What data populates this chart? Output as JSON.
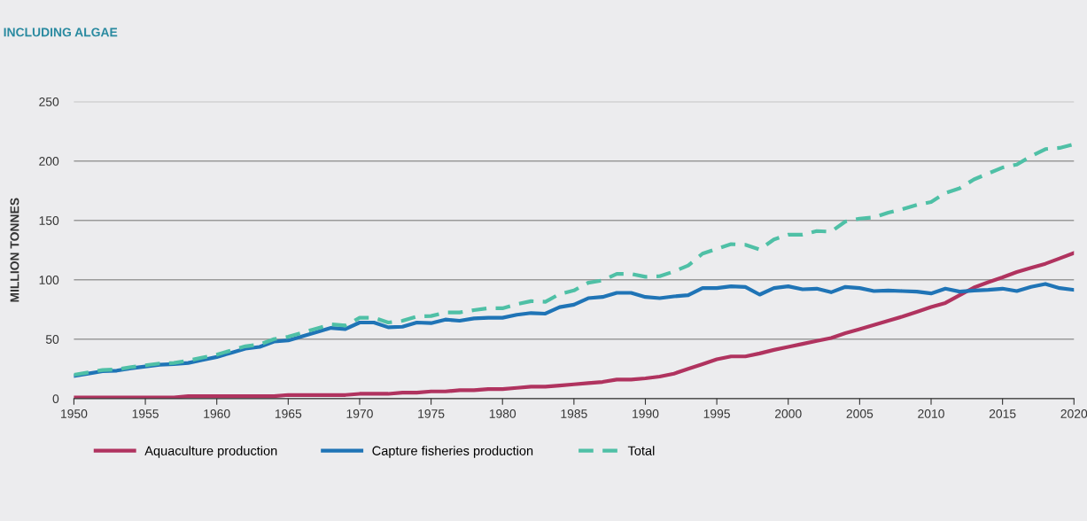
{
  "chart_data": {
    "type": "line",
    "title": "INCLUDING ALGAE",
    "ylabel": "MILLION TONNES",
    "x": [
      1950,
      1951,
      1952,
      1953,
      1954,
      1955,
      1956,
      1957,
      1958,
      1959,
      1960,
      1961,
      1962,
      1963,
      1964,
      1965,
      1966,
      1967,
      1968,
      1969,
      1970,
      1971,
      1972,
      1973,
      1974,
      1975,
      1976,
      1977,
      1978,
      1979,
      1980,
      1981,
      1982,
      1983,
      1984,
      1985,
      1986,
      1987,
      1988,
      1989,
      1990,
      1991,
      1992,
      1993,
      1994,
      1995,
      1996,
      1997,
      1998,
      1999,
      2000,
      2001,
      2002,
      2003,
      2004,
      2005,
      2006,
      2007,
      2008,
      2009,
      2010,
      2011,
      2012,
      2013,
      2014,
      2015,
      2016,
      2017,
      2018,
      2019,
      2020
    ],
    "series": [
      {
        "name": "Aquaculture production",
        "color": "#b0335f",
        "line_style": "solid",
        "values": [
          1,
          1,
          1,
          1,
          1,
          1,
          1,
          1,
          2,
          2,
          2,
          2,
          2,
          2,
          2,
          3,
          3,
          3,
          3,
          3,
          4,
          4,
          4,
          5,
          5,
          6,
          6,
          7,
          7,
          8,
          8,
          9,
          10,
          10,
          11,
          12,
          13,
          14,
          16,
          16,
          17,
          18.5,
          21,
          25,
          29,
          33,
          35.5,
          35.5,
          38,
          41,
          43.5,
          46,
          48.5,
          51,
          55,
          58.5,
          62,
          65.5,
          69,
          73,
          77,
          80.5,
          87,
          93.5,
          98,
          102,
          106.5,
          110,
          113.5,
          118,
          122.5
        ]
      },
      {
        "name": "Capture fisheries production",
        "color": "#1f74b6",
        "line_style": "solid",
        "values": [
          19,
          21,
          23,
          23.5,
          25.5,
          27,
          28.5,
          29,
          30,
          32.5,
          35,
          38.5,
          42,
          43.5,
          48,
          49,
          52.5,
          56,
          59.5,
          58.5,
          64,
          64,
          60,
          60.5,
          64,
          63.5,
          66.5,
          65.5,
          67.5,
          68,
          68,
          70.5,
          72,
          71.5,
          77,
          79,
          84.5,
          85.5,
          89,
          89,
          85.5,
          84.5,
          86,
          87,
          93,
          93,
          94.5,
          94,
          87.5,
          93,
          94.5,
          92,
          92.5,
          89.5,
          94,
          93,
          90.5,
          91,
          90.5,
          90,
          88.5,
          92.5,
          90,
          91,
          91.5,
          92.5,
          90.5,
          94,
          96.5,
          93,
          91.5
        ]
      },
      {
        "name": "Total",
        "color": "#4fc0a6",
        "line_style": "dashed",
        "values": [
          20,
          22,
          24,
          24.5,
          26.5,
          28,
          29.5,
          30,
          32,
          34.5,
          37,
          40.5,
          44,
          45.5,
          50,
          52,
          55.5,
          59,
          62.5,
          61.5,
          68,
          68,
          64,
          65.5,
          69,
          69.5,
          72.5,
          72.5,
          74.5,
          76,
          76,
          79.5,
          82,
          81.5,
          88,
          91,
          97.5,
          99.5,
          105,
          105,
          102.5,
          103,
          107,
          112,
          122,
          126,
          130,
          129.5,
          125.5,
          134,
          138,
          138,
          141,
          140.5,
          149,
          151.5,
          152.5,
          156.5,
          159.5,
          163,
          165.5,
          173,
          177,
          184.5,
          189.5,
          194.5,
          197,
          204,
          210,
          211,
          214
        ]
      }
    ],
    "xlim": [
      1950,
      2020
    ],
    "xticks": [
      1950,
      1955,
      1960,
      1965,
      1970,
      1975,
      1980,
      1985,
      1990,
      1995,
      2000,
      2005,
      2010,
      2015,
      2020
    ],
    "ylim": [
      0,
      250
    ],
    "yticks": [
      0,
      50,
      100,
      150,
      200,
      250
    ],
    "grid": "y",
    "legend": "bottom left",
    "marker": "none"
  }
}
